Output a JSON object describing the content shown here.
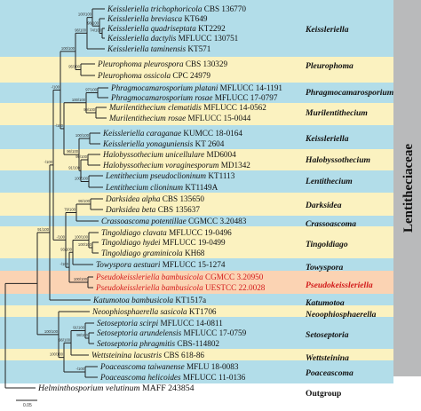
{
  "family": {
    "label": "Lentitheciaceae",
    "bar_color": "#b9babb"
  },
  "colors": {
    "blue": "#b2dde9",
    "yellow": "#fbf2c0",
    "orange": "#fbd3b3",
    "highlight": "#d21a1a"
  },
  "outgroup_label": "Outgroup",
  "scale_label": "0.05",
  "taxa": [
    {
      "genus": "Keissleriella trichophoricola",
      "code": "CBS 136770"
    },
    {
      "genus": "Keissleriella breviasca",
      "code": "KT649"
    },
    {
      "genus": "Keissleriella quadriseptata",
      "code": "KT2292"
    },
    {
      "genus": "Keissleriella dactylis",
      "code": "MFLUCC 130751"
    },
    {
      "genus": "Keissleriella taminensis",
      "code": "KT571"
    },
    {
      "genus": "Pleurophoma pleurospora",
      "code": "CBS 130329"
    },
    {
      "genus": "Pleurophoma ossicola",
      "code": "CPC 24979"
    },
    {
      "genus": "Phragmocamarosporium platani",
      "code": "MFLUCC 14-1191"
    },
    {
      "genus": "Phragmocamarosporium rosae",
      "code": "MFLUCC 17-0797"
    },
    {
      "genus": "Murilentithecium clematidis",
      "code": "MFLUCC 14-0562"
    },
    {
      "genus": "Murilentithecium rosae",
      "code": "MFLUCC 15-0044"
    },
    {
      "genus": "Keissleriella caraganae",
      "code": "KUMCC 18-0164"
    },
    {
      "genus": "Keissleriella yonaguniensis",
      "code": "KT 2604"
    },
    {
      "genus": "Halobyssothecium unicellulare",
      "code": "MD6004"
    },
    {
      "genus": "Halobyssothecium voraginesporum",
      "code": "MD1342"
    },
    {
      "genus": "Lentithecium pseudoclioninum",
      "code": "KT1113"
    },
    {
      "genus": "Lentithecium clioninum",
      "code": "KT1149A"
    },
    {
      "genus": "Darksidea alpha",
      "code": "CBS 135650"
    },
    {
      "genus": "Darksidea beta",
      "code": "CBS 135637"
    },
    {
      "genus": "Crassoascoma potentillae",
      "code": "CGMCC 3.20483"
    },
    {
      "genus": "Tingoldiago clavata",
      "code": "MFLUCC 19-0496"
    },
    {
      "genus": "Tingoldiago hydei",
      "code": "MFLUCC 19-0499"
    },
    {
      "genus": "Tingoldiago graminicola",
      "code": "KH68"
    },
    {
      "genus": "Towyspora aestuari",
      "code": "MFLUCC 15-1274"
    },
    {
      "genus": "Pseudokeissleriella bambusicola",
      "code": "CGMCC 3.20950"
    },
    {
      "genus": "Pseudokeissleriella bambusicola",
      "code": "UESTCC 22.0028"
    },
    {
      "genus": "Katumotoa bambusicola",
      "code": "KT1517a"
    },
    {
      "genus": "Neoophiosphaerella sasicola",
      "code": "KT1706"
    },
    {
      "genus": "Setoseptoria scirpi",
      "code": "MFLUCC 14-0811"
    },
    {
      "genus": "Setoseptoria arundelensis",
      "code": "MFLUCC 17-0759"
    },
    {
      "genus": "Setoseptoria phragmitis",
      "code": "CBS-114802"
    },
    {
      "genus": "Wettsteinina lacustris",
      "code": "CBS 618-86"
    },
    {
      "genus": "Poaceascoma taiwanense",
      "code": "MFLU 18-0083"
    },
    {
      "genus": "Poaceascoma helicoides",
      "code": "MFLUCC 11-0136"
    },
    {
      "genus": "Helminthosporium velutinum",
      "code": "MAFF 243854"
    }
  ],
  "clades": [
    {
      "label": "Keissleriella"
    },
    {
      "label": "Pleurophoma"
    },
    {
      "label": "Phragmocamarosporium"
    },
    {
      "label": "Murilentithecium"
    },
    {
      "label": "Keissleriella"
    },
    {
      "label": "Halobyssothecium"
    },
    {
      "label": "Lentithecium"
    },
    {
      "label": "Darksidea"
    },
    {
      "label": "Crassoascoma"
    },
    {
      "label": "Tingoldiago"
    },
    {
      "label": "Towyspora"
    },
    {
      "label": "Pseudokeissleriella"
    },
    {
      "label": "Katumotoa"
    },
    {
      "label": "Neoophiosphaerella"
    },
    {
      "label": "Setoseptoria"
    },
    {
      "label": "Wettsteinina"
    },
    {
      "label": "Poaceascoma"
    }
  ],
  "supports": [
    "74/100",
    "98/100",
    "100/100",
    "96/100",
    "95/100",
    "100/100",
    "97/100",
    "99/100",
    "100/100",
    "100/100",
    "99/100",
    "100/100",
    "91/100",
    "96/100",
    "95/100",
    "100/100",
    "100/100",
    "79/100",
    "100/100",
    "93/100",
    "-/100",
    "-/100",
    "-/100",
    "-/100",
    "-/100",
    "91/100",
    "98/100",
    "91/100",
    "96/100",
    "-/100",
    "100/100",
    "100/100"
  ]
}
